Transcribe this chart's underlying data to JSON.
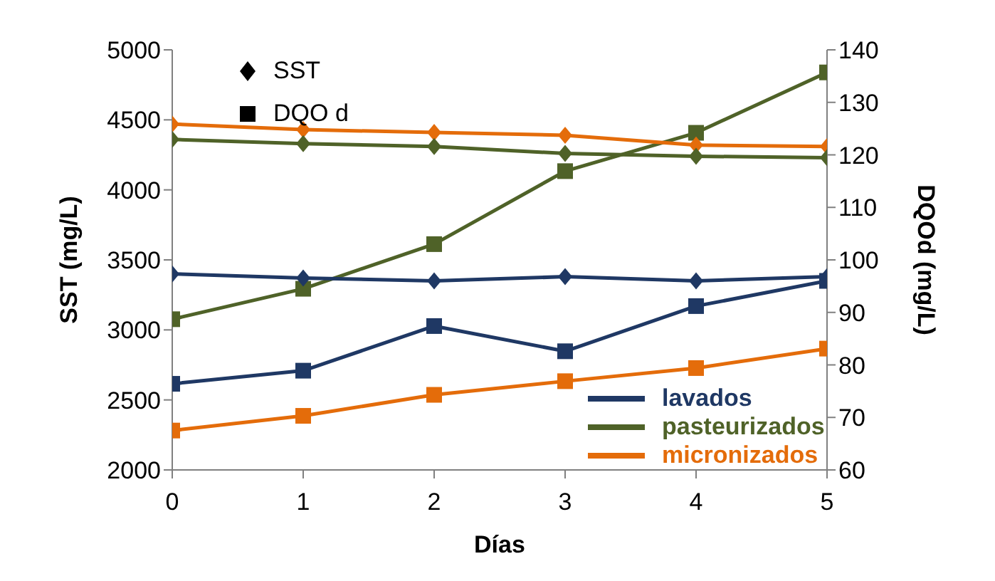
{
  "chart_data": {
    "type": "line",
    "xlabel": "Días",
    "ylabel": "SST (mg/L)",
    "y2label": "DQOd (mg/L)",
    "x": [
      0,
      1,
      2,
      3,
      4,
      5
    ],
    "xlim": [
      0,
      5
    ],
    "xticks": [
      0,
      1,
      2,
      3,
      4,
      5
    ],
    "ylim": [
      2000,
      5000
    ],
    "yticks": [
      2000,
      2500,
      3000,
      3500,
      4000,
      4500,
      5000
    ],
    "y2lim": [
      60,
      140
    ],
    "y2ticks": [
      60,
      70,
      80,
      90,
      100,
      110,
      120,
      130,
      140
    ],
    "grid": false,
    "legend": "bottom right",
    "annotations": [
      "SST",
      "DQO d"
    ],
    "series": [
      {
        "name": "lavados",
        "color": "#1f3864",
        "marker": "diamond",
        "values": [
          3400,
          3370,
          3350,
          3380,
          3350,
          3380
        ]
      },
      {
        "name": "pasteurizados",
        "color": "#4f6228",
        "marker": "diamond",
        "values": [
          4360,
          4330,
          4310,
          4260,
          4240,
          4230
        ]
      },
      {
        "name": "micronizados",
        "color": "#e46c0a",
        "marker": "diamond",
        "values": [
          4470,
          4430,
          4410,
          4390,
          4320,
          4310
        ]
      },
      {
        "color": "#1f3864",
        "marker": "square",
        "axis": "y2",
        "values": [
          76.4,
          78.9,
          87.4,
          82.6,
          91.2,
          96.0
        ]
      },
      {
        "color": "#4f6228",
        "marker": "square",
        "axis": "y2",
        "values": [
          88.7,
          94.5,
          103.0,
          116.9,
          124.2,
          135.7
        ]
      },
      {
        "color": "#e46c0a",
        "marker": "square",
        "axis": "y2",
        "values": [
          67.5,
          70.3,
          74.3,
          76.9,
          79.4,
          83.1
        ]
      }
    ]
  }
}
